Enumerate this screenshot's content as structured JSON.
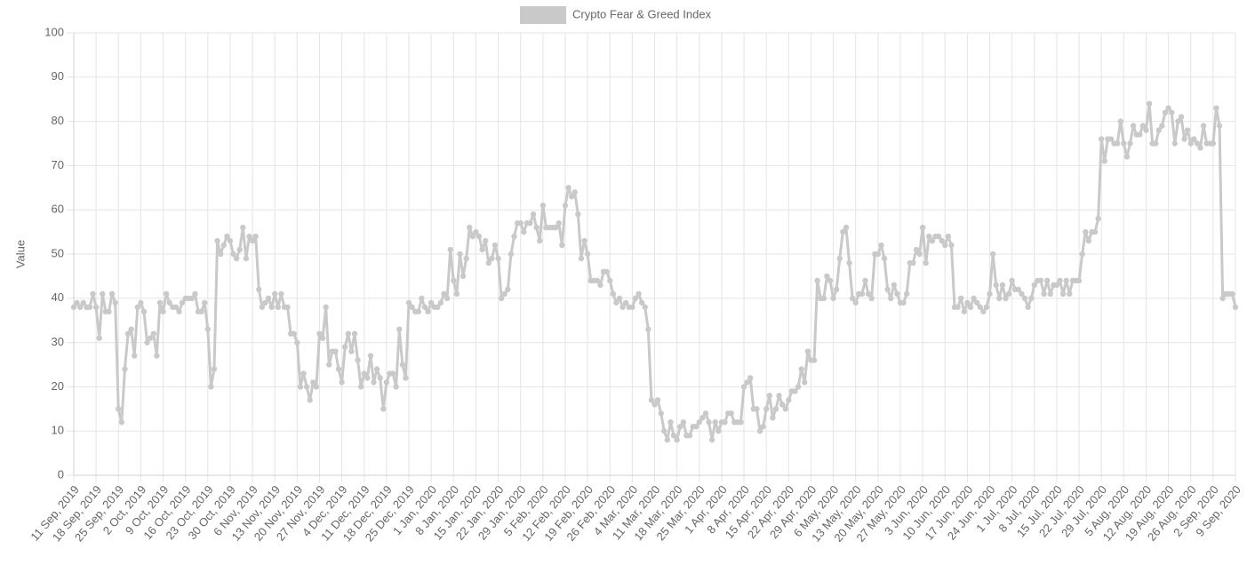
{
  "chart_data": {
    "type": "line",
    "legend": "top",
    "grid": true,
    "ylabel": "Value",
    "ylim": [
      0,
      100
    ],
    "yticks": [
      0,
      10,
      20,
      30,
      40,
      50,
      60,
      70,
      80,
      90,
      100
    ],
    "categories": [
      "11 Sep, 2019",
      null,
      null,
      null,
      null,
      null,
      null,
      "18 Sep, 2019",
      null,
      null,
      null,
      null,
      null,
      null,
      "25 Sep, 2019",
      null,
      null,
      null,
      null,
      null,
      null,
      "2 Oct, 2019",
      null,
      null,
      null,
      null,
      null,
      null,
      "9 Oct, 2019",
      null,
      null,
      null,
      null,
      null,
      null,
      "16 Oct, 2019",
      null,
      null,
      null,
      null,
      null,
      null,
      "23 Oct, 2019",
      null,
      null,
      null,
      null,
      null,
      null,
      "30 Oct, 2019",
      null,
      null,
      null,
      null,
      null,
      null,
      "6 Nov, 2019",
      null,
      null,
      null,
      null,
      null,
      null,
      "13 Nov, 2019",
      null,
      null,
      null,
      null,
      null,
      null,
      "20 Nov, 2019",
      null,
      null,
      null,
      null,
      null,
      null,
      "27 Nov, 2019",
      null,
      null,
      null,
      null,
      null,
      null,
      "4 Dec, 2019",
      null,
      null,
      null,
      null,
      null,
      null,
      "11 Dec, 2019",
      null,
      null,
      null,
      null,
      null,
      null,
      "18 Dec, 2019",
      null,
      null,
      null,
      null,
      null,
      null,
      "25 Dec, 2019",
      null,
      null,
      null,
      null,
      null,
      null,
      "1 Jan, 2020",
      null,
      null,
      null,
      null,
      null,
      null,
      "8 Jan, 2020",
      null,
      null,
      null,
      null,
      null,
      null,
      "15 Jan, 2020",
      null,
      null,
      null,
      null,
      null,
      null,
      "22 Jan, 2020",
      null,
      null,
      null,
      null,
      null,
      null,
      "29 Jan, 2020",
      null,
      null,
      null,
      null,
      null,
      null,
      "5 Feb, 2020",
      null,
      null,
      null,
      null,
      null,
      null,
      "12 Feb, 2020",
      null,
      null,
      null,
      null,
      null,
      null,
      "19 Feb, 2020",
      null,
      null,
      null,
      null,
      null,
      null,
      "26 Feb, 2020",
      null,
      null,
      null,
      null,
      null,
      null,
      "4 Mar, 2020",
      null,
      null,
      null,
      null,
      null,
      null,
      "11 Mar, 2020",
      null,
      null,
      null,
      null,
      null,
      null,
      "18 Mar, 2020",
      null,
      null,
      null,
      null,
      null,
      null,
      "25 Mar, 2020",
      null,
      null,
      null,
      null,
      null,
      null,
      "1 Apr, 2020",
      null,
      null,
      null,
      null,
      null,
      null,
      "8 Apr, 2020",
      null,
      null,
      null,
      null,
      null,
      null,
      "15 Apr, 2020",
      null,
      null,
      null,
      null,
      null,
      null,
      "22 Apr, 2020",
      null,
      null,
      null,
      null,
      null,
      null,
      "29 Apr, 2020",
      null,
      null,
      null,
      null,
      null,
      null,
      "6 May, 2020",
      null,
      null,
      null,
      null,
      null,
      null,
      "13 May, 2020",
      null,
      null,
      null,
      null,
      null,
      null,
      "20 May, 2020",
      null,
      null,
      null,
      null,
      null,
      null,
      "27 May, 2020",
      null,
      null,
      null,
      null,
      null,
      null,
      "3 Jun, 2020",
      null,
      null,
      null,
      null,
      null,
      null,
      "10 Jun, 2020",
      null,
      null,
      null,
      null,
      null,
      null,
      "17 Jun, 2020",
      null,
      null,
      null,
      null,
      null,
      null,
      "24 Jun, 2020",
      null,
      null,
      null,
      null,
      null,
      null,
      "1 Jul, 2020",
      null,
      null,
      null,
      null,
      null,
      null,
      "8 Jul, 2020",
      null,
      null,
      null,
      null,
      null,
      null,
      "15 Jul, 2020",
      null,
      null,
      null,
      null,
      null,
      null,
      "22 Jul, 2020",
      null,
      null,
      null,
      null,
      null,
      null,
      "29 Jul, 2020",
      null,
      null,
      null,
      null,
      null,
      null,
      "5 Aug, 2020",
      null,
      null,
      null,
      null,
      null,
      null,
      "12 Aug, 2020",
      null,
      null,
      null,
      null,
      null,
      null,
      "19 Aug, 2020",
      null,
      null,
      null,
      null,
      null,
      null,
      "26 Aug, 2020",
      null,
      null,
      null,
      null,
      null,
      null,
      "2 Sep, 2020",
      null,
      null,
      null,
      null,
      null,
      null,
      "9 Sep, 2020"
    ],
    "series": [
      {
        "name": "Crypto Fear & Greed Index",
        "color": "#c9c9c9",
        "values": [
          38,
          39,
          38,
          39,
          38,
          38,
          41,
          38,
          31,
          41,
          37,
          37,
          41,
          39,
          15,
          12,
          24,
          32,
          33,
          27,
          38,
          39,
          37,
          30,
          31,
          32,
          27,
          39,
          37,
          41,
          39,
          38,
          38,
          37,
          39,
          40,
          40,
          40,
          41,
          37,
          37,
          39,
          33,
          20,
          24,
          53,
          50,
          52,
          54,
          53,
          50,
          49,
          51,
          56,
          49,
          54,
          53,
          54,
          42,
          38,
          39,
          40,
          38,
          41,
          38,
          41,
          38,
          38,
          32,
          32,
          30,
          20,
          23,
          20,
          17,
          21,
          20,
          32,
          31,
          38,
          25,
          28,
          28,
          24,
          21,
          29,
          32,
          28,
          32,
          26,
          20,
          23,
          22,
          27,
          21,
          24,
          22,
          15,
          21,
          23,
          23,
          20,
          33,
          25,
          22,
          39,
          38,
          37,
          37,
          40,
          38,
          37,
          39,
          38,
          38,
          39,
          41,
          40,
          51,
          44,
          41,
          50,
          45,
          49,
          56,
          54,
          55,
          54,
          51,
          53,
          48,
          49,
          52,
          49,
          40,
          41,
          42,
          50,
          54,
          57,
          57,
          55,
          57,
          57,
          59,
          56,
          53,
          61,
          56,
          56,
          56,
          56,
          57,
          52,
          61,
          65,
          63,
          64,
          59,
          49,
          53,
          50,
          44,
          44,
          44,
          43,
          46,
          46,
          44,
          41,
          39,
          40,
          38,
          39,
          38,
          38,
          40,
          41,
          39,
          38,
          33,
          17,
          16,
          17,
          14,
          10,
          8,
          12,
          9,
          8,
          11,
          12,
          9,
          9,
          11,
          11,
          12,
          13,
          14,
          12,
          8,
          12,
          10,
          12,
          12,
          14,
          14,
          12,
          12,
          12,
          20,
          21,
          22,
          15,
          15,
          10,
          11,
          15,
          18,
          13,
          15,
          18,
          16,
          15,
          17,
          19,
          19,
          20,
          24,
          21,
          28,
          26,
          26,
          44,
          40,
          40,
          45,
          44,
          40,
          42,
          49,
          55,
          56,
          48,
          40,
          39,
          41,
          41,
          44,
          41,
          40,
          50,
          50,
          52,
          49,
          42,
          40,
          43,
          41,
          39,
          39,
          41,
          48,
          48,
          51,
          50,
          56,
          48,
          54,
          53,
          54,
          54,
          53,
          52,
          54,
          52,
          38,
          38,
          40,
          37,
          39,
          38,
          40,
          39,
          38,
          37,
          38,
          41,
          50,
          43,
          40,
          43,
          40,
          41,
          44,
          42,
          42,
          41,
          40,
          38,
          40,
          43,
          44,
          44,
          41,
          44,
          41,
          43,
          43,
          44,
          41,
          44,
          41,
          44,
          44,
          44,
          50,
          55,
          53,
          55,
          55,
          58,
          76,
          71,
          76,
          76,
          75,
          75,
          80,
          75,
          72,
          75,
          79,
          77,
          77,
          79,
          78,
          84,
          75,
          75,
          78,
          79,
          82,
          83,
          82,
          75,
          80,
          81,
          76,
          78,
          75,
          76,
          75,
          74,
          79,
          75,
          75,
          75,
          83,
          79,
          40,
          41,
          41,
          41,
          38
        ]
      }
    ]
  }
}
